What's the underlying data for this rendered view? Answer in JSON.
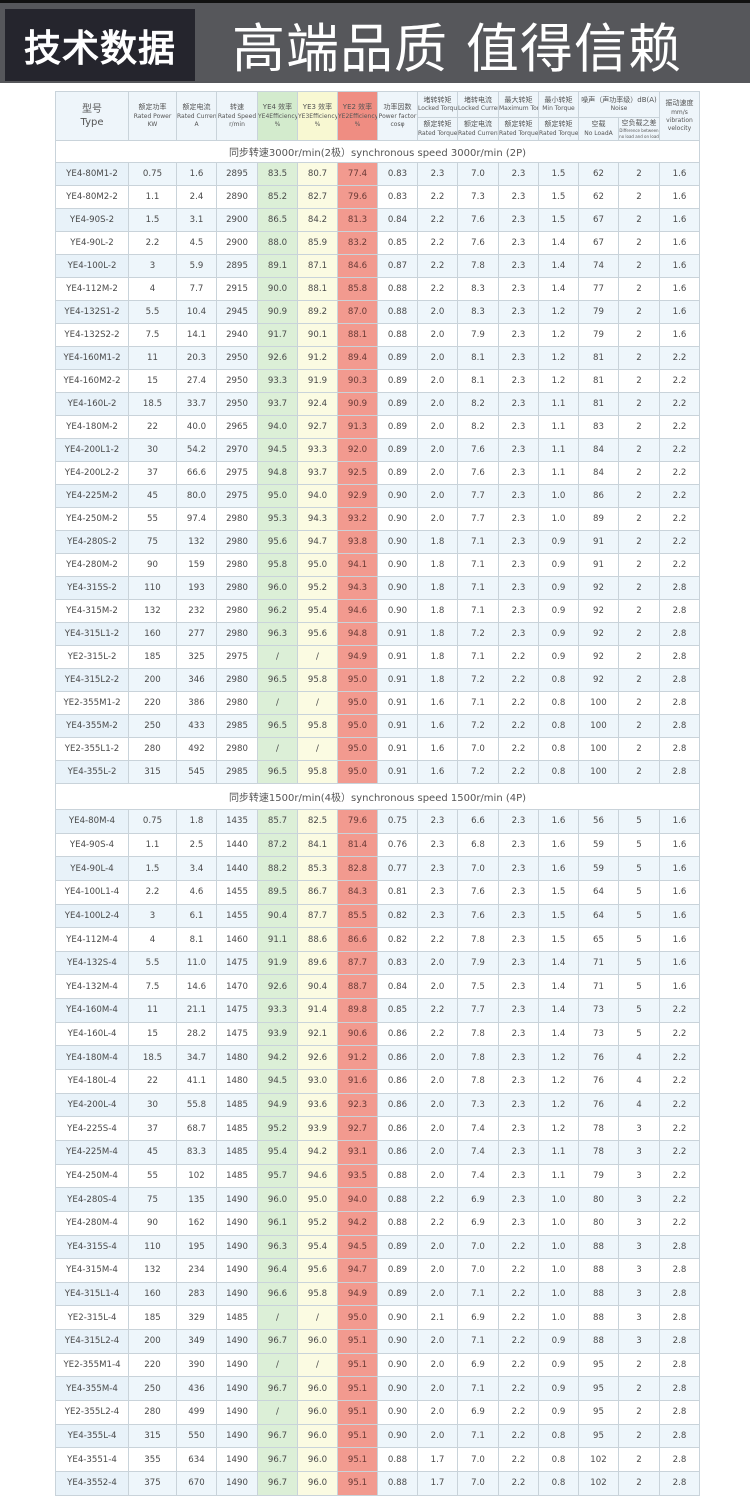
{
  "banner": {
    "badge": "技术数据",
    "slogan": "高端品质 值得信赖"
  },
  "colors": {
    "ye4": "#dcefd7",
    "ye3": "#fbfbe2",
    "ye2": "#f29a8f",
    "stripe": "#eef6fb",
    "banner": "#56575b"
  },
  "header": {
    "type_zh": "型号",
    "type_en": "Type",
    "power_zh": "额定功率",
    "power_en": "Rated Power",
    "power_unit": "KW",
    "current_zh": "额定电流",
    "current_en": "Rated Current",
    "current_unit": "A",
    "speed_zh": "转速",
    "speed_en": "Rated Speed",
    "speed_unit": "r/min",
    "ye4_zh": "YE4 效率",
    "ye4_en": "YE4Efficiency",
    "ye4_unit": "%",
    "ye3_zh": "YE3 效率",
    "ye3_en": "YE3Efficiency",
    "ye3_unit": "%",
    "ye2_zh": "YE2 效率",
    "ye2_en": "YE2Efficiency",
    "ye2_unit": "%",
    "pf_zh": "功率因数",
    "pf_en": "Power factor",
    "pf_unit": "cosφ",
    "lt_zh": "堵转转矩",
    "lt_en": "Locked Torque",
    "lt_den_zh": "额定转矩",
    "lt_den_en": "Rated Torque",
    "lc_zh": "堵转电流",
    "lc_en": "Locked Current",
    "lc_den_zh": "额定电流",
    "lc_den_en": "Rated Current",
    "mt_zh": "最大转矩",
    "mt_en": "Maximum Torque",
    "mt_den_zh": "额定转矩",
    "mt_den_en": "Rated Torque",
    "nt_zh": "最小转矩",
    "nt_en": "Min Torque",
    "nt_den_zh": "额定转矩",
    "nt_den_en": "Rated Torque",
    "noise_zh": "噪声（声功率级）dB(A)",
    "noise_en": "Noise",
    "noload_zh": "空载",
    "noload_en": "No LoadA",
    "diff_zh": "空负载之差",
    "diff_en": "Difference between no load and on load",
    "vib_zh": "振动速度",
    "vib_unit": "mm/s",
    "vib_en1": "vibration",
    "vib_en2": "velocity"
  },
  "sections": [
    {
      "title": "同步转速3000r/min(2极）synchronous speed 3000r/min (2P)",
      "rows": [
        [
          "YE4-80M1-2",
          "0.75",
          "1.6",
          "2895",
          "83.5",
          "80.7",
          "77.4",
          "0.83",
          "2.3",
          "7.0",
          "2.3",
          "1.5",
          "62",
          "2",
          "1.6"
        ],
        [
          "YE4-80M2-2",
          "1.1",
          "2.4",
          "2890",
          "85.2",
          "82.7",
          "79.6",
          "0.83",
          "2.2",
          "7.3",
          "2.3",
          "1.5",
          "62",
          "2",
          "1.6"
        ],
        [
          "YE4-90S-2",
          "1.5",
          "3.1",
          "2900",
          "86.5",
          "84.2",
          "81.3",
          "0.84",
          "2.2",
          "7.6",
          "2.3",
          "1.5",
          "67",
          "2",
          "1.6"
        ],
        [
          "YE4-90L-2",
          "2.2",
          "4.5",
          "2900",
          "88.0",
          "85.9",
          "83.2",
          "0.85",
          "2.2",
          "7.6",
          "2.3",
          "1.4",
          "67",
          "2",
          "1.6"
        ],
        [
          "YE4-100L-2",
          "3",
          "5.9",
          "2895",
          "89.1",
          "87.1",
          "84.6",
          "0.87",
          "2.2",
          "7.8",
          "2.3",
          "1.4",
          "74",
          "2",
          "1.6"
        ],
        [
          "YE4-112M-2",
          "4",
          "7.7",
          "2915",
          "90.0",
          "88.1",
          "85.8",
          "0.88",
          "2.2",
          "8.3",
          "2.3",
          "1.4",
          "77",
          "2",
          "1.6"
        ],
        [
          "YE4-132S1-2",
          "5.5",
          "10.4",
          "2945",
          "90.9",
          "89.2",
          "87.0",
          "0.88",
          "2.0",
          "8.3",
          "2.3",
          "1.2",
          "79",
          "2",
          "1.6"
        ],
        [
          "YE4-132S2-2",
          "7.5",
          "14.1",
          "2940",
          "91.7",
          "90.1",
          "88.1",
          "0.88",
          "2.0",
          "7.9",
          "2.3",
          "1.2",
          "79",
          "2",
          "1.6"
        ],
        [
          "YE4-160M1-2",
          "11",
          "20.3",
          "2950",
          "92.6",
          "91.2",
          "89.4",
          "0.89",
          "2.0",
          "8.1",
          "2.3",
          "1.2",
          "81",
          "2",
          "2.2"
        ],
        [
          "YE4-160M2-2",
          "15",
          "27.4",
          "2950",
          "93.3",
          "91.9",
          "90.3",
          "0.89",
          "2.0",
          "8.1",
          "2.3",
          "1.2",
          "81",
          "2",
          "2.2"
        ],
        [
          "YE4-160L-2",
          "18.5",
          "33.7",
          "2950",
          "93.7",
          "92.4",
          "90.9",
          "0.89",
          "2.0",
          "8.2",
          "2.3",
          "1.1",
          "81",
          "2",
          "2.2"
        ],
        [
          "YE4-180M-2",
          "22",
          "40.0",
          "2965",
          "94.0",
          "92.7",
          "91.3",
          "0.89",
          "2.0",
          "8.2",
          "2.3",
          "1.1",
          "83",
          "2",
          "2.2"
        ],
        [
          "YE4-200L1-2",
          "30",
          "54.2",
          "2970",
          "94.5",
          "93.3",
          "92.0",
          "0.89",
          "2.0",
          "7.6",
          "2.3",
          "1.1",
          "84",
          "2",
          "2.2"
        ],
        [
          "YE4-200L2-2",
          "37",
          "66.6",
          "2975",
          "94.8",
          "93.7",
          "92.5",
          "0.89",
          "2.0",
          "7.6",
          "2.3",
          "1.1",
          "84",
          "2",
          "2.2"
        ],
        [
          "YE4-225M-2",
          "45",
          "80.0",
          "2975",
          "95.0",
          "94.0",
          "92.9",
          "0.90",
          "2.0",
          "7.7",
          "2.3",
          "1.0",
          "86",
          "2",
          "2.2"
        ],
        [
          "YE4-250M-2",
          "55",
          "97.4",
          "2980",
          "95.3",
          "94.3",
          "93.2",
          "0.90",
          "2.0",
          "7.7",
          "2.3",
          "1.0",
          "89",
          "2",
          "2.2"
        ],
        [
          "YE4-280S-2",
          "75",
          "132",
          "2980",
          "95.6",
          "94.7",
          "93.8",
          "0.90",
          "1.8",
          "7.1",
          "2.3",
          "0.9",
          "91",
          "2",
          "2.2"
        ],
        [
          "YE4-280M-2",
          "90",
          "159",
          "2980",
          "95.8",
          "95.0",
          "94.1",
          "0.90",
          "1.8",
          "7.1",
          "2.3",
          "0.9",
          "91",
          "2",
          "2.2"
        ],
        [
          "YE4-315S-2",
          "110",
          "193",
          "2980",
          "96.0",
          "95.2",
          "94.3",
          "0.90",
          "1.8",
          "7.1",
          "2.3",
          "0.9",
          "92",
          "2",
          "2.8"
        ],
        [
          "YE4-315M-2",
          "132",
          "232",
          "2980",
          "96.2",
          "95.4",
          "94.6",
          "0.90",
          "1.8",
          "7.1",
          "2.3",
          "0.9",
          "92",
          "2",
          "2.8"
        ],
        [
          "YE4-315L1-2",
          "160",
          "277",
          "2980",
          "96.3",
          "95.6",
          "94.8",
          "0.91",
          "1.8",
          "7.2",
          "2.3",
          "0.9",
          "92",
          "2",
          "2.8"
        ],
        [
          "YE2-315L-2",
          "185",
          "325",
          "2975",
          "/",
          "/",
          "94.9",
          "0.91",
          "1.8",
          "7.1",
          "2.2",
          "0.9",
          "92",
          "2",
          "2.8"
        ],
        [
          "YE4-315L2-2",
          "200",
          "346",
          "2980",
          "96.5",
          "95.8",
          "95.0",
          "0.91",
          "1.8",
          "7.2",
          "2.2",
          "0.8",
          "92",
          "2",
          "2.8"
        ],
        [
          "YE2-355M1-2",
          "220",
          "386",
          "2980",
          "/",
          "/",
          "95.0",
          "0.91",
          "1.6",
          "7.1",
          "2.2",
          "0.8",
          "100",
          "2",
          "2.8"
        ],
        [
          "YE4-355M-2",
          "250",
          "433",
          "2985",
          "96.5",
          "95.8",
          "95.0",
          "0.91",
          "1.6",
          "7.2",
          "2.2",
          "0.8",
          "100",
          "2",
          "2.8"
        ],
        [
          "YE2-355L1-2",
          "280",
          "492",
          "2980",
          "/",
          "/",
          "95.0",
          "0.91",
          "1.6",
          "7.0",
          "2.2",
          "0.8",
          "100",
          "2",
          "2.8"
        ],
        [
          "YE4-355L-2",
          "315",
          "545",
          "2985",
          "96.5",
          "95.8",
          "95.0",
          "0.91",
          "1.6",
          "7.2",
          "2.2",
          "0.8",
          "100",
          "2",
          "2.8"
        ]
      ]
    },
    {
      "title": "同步转速1500r/min(4极）synchronous speed 1500r/min (4P)",
      "rows": [
        [
          "YE4-80M-4",
          "0.75",
          "1.8",
          "1435",
          "85.7",
          "82.5",
          "79.6",
          "0.75",
          "2.3",
          "6.6",
          "2.3",
          "1.6",
          "56",
          "5",
          "1.6"
        ],
        [
          "YE4-90S-4",
          "1.1",
          "2.5",
          "1440",
          "87.2",
          "84.1",
          "81.4",
          "0.76",
          "2.3",
          "6.8",
          "2.3",
          "1.6",
          "59",
          "5",
          "1.6"
        ],
        [
          "YE4-90L-4",
          "1.5",
          "3.4",
          "1440",
          "88.2",
          "85.3",
          "82.8",
          "0.77",
          "2.3",
          "7.0",
          "2.3",
          "1.6",
          "59",
          "5",
          "1.6"
        ],
        [
          "YE4-100L1-4",
          "2.2",
          "4.6",
          "1455",
          "89.5",
          "86.7",
          "84.3",
          "0.81",
          "2.3",
          "7.6",
          "2.3",
          "1.5",
          "64",
          "5",
          "1.6"
        ],
        [
          "YE4-100L2-4",
          "3",
          "6.1",
          "1455",
          "90.4",
          "87.7",
          "85.5",
          "0.82",
          "2.3",
          "7.6",
          "2.3",
          "1.5",
          "64",
          "5",
          "1.6"
        ],
        [
          "YE4-112M-4",
          "4",
          "8.1",
          "1460",
          "91.1",
          "88.6",
          "86.6",
          "0.82",
          "2.2",
          "7.8",
          "2.3",
          "1.5",
          "65",
          "5",
          "1.6"
        ],
        [
          "YE4-132S-4",
          "5.5",
          "11.0",
          "1475",
          "91.9",
          "89.6",
          "87.7",
          "0.83",
          "2.0",
          "7.9",
          "2.3",
          "1.4",
          "71",
          "5",
          "1.6"
        ],
        [
          "YE4-132M-4",
          "7.5",
          "14.6",
          "1470",
          "92.6",
          "90.4",
          "88.7",
          "0.84",
          "2.0",
          "7.5",
          "2.3",
          "1.4",
          "71",
          "5",
          "1.6"
        ],
        [
          "YE4-160M-4",
          "11",
          "21.1",
          "1475",
          "93.3",
          "91.4",
          "89.8",
          "0.85",
          "2.2",
          "7.7",
          "2.3",
          "1.4",
          "73",
          "5",
          "2.2"
        ],
        [
          "YE4-160L-4",
          "15",
          "28.2",
          "1475",
          "93.9",
          "92.1",
          "90.6",
          "0.86",
          "2.2",
          "7.8",
          "2.3",
          "1.4",
          "73",
          "5",
          "2.2"
        ],
        [
          "YE4-180M-4",
          "18.5",
          "34.7",
          "1480",
          "94.2",
          "92.6",
          "91.2",
          "0.86",
          "2.0",
          "7.8",
          "2.3",
          "1.2",
          "76",
          "4",
          "2.2"
        ],
        [
          "YE4-180L-4",
          "22",
          "41.1",
          "1480",
          "94.5",
          "93.0",
          "91.6",
          "0.86",
          "2.0",
          "7.8",
          "2.3",
          "1.2",
          "76",
          "4",
          "2.2"
        ],
        [
          "YE4-200L-4",
          "30",
          "55.8",
          "1485",
          "94.9",
          "93.6",
          "92.3",
          "0.86",
          "2.0",
          "7.3",
          "2.3",
          "1.2",
          "76",
          "4",
          "2.2"
        ],
        [
          "YE4-225S-4",
          "37",
          "68.7",
          "1485",
          "95.2",
          "93.9",
          "92.7",
          "0.86",
          "2.0",
          "7.4",
          "2.3",
          "1.2",
          "78",
          "3",
          "2.2"
        ],
        [
          "YE4-225M-4",
          "45",
          "83.3",
          "1485",
          "95.4",
          "94.2",
          "93.1",
          "0.86",
          "2.0",
          "7.4",
          "2.3",
          "1.1",
          "78",
          "3",
          "2.2"
        ],
        [
          "YE4-250M-4",
          "55",
          "102",
          "1485",
          "95.7",
          "94.6",
          "93.5",
          "0.88",
          "2.0",
          "7.4",
          "2.3",
          "1.1",
          "79",
          "3",
          "2.2"
        ],
        [
          "YE4-280S-4",
          "75",
          "135",
          "1490",
          "96.0",
          "95.0",
          "94.0",
          "0.88",
          "2.2",
          "6.9",
          "2.3",
          "1.0",
          "80",
          "3",
          "2.2"
        ],
        [
          "YE4-280M-4",
          "90",
          "162",
          "1490",
          "96.1",
          "95.2",
          "94.2",
          "0.88",
          "2.2",
          "6.9",
          "2.3",
          "1.0",
          "80",
          "3",
          "2.2"
        ],
        [
          "YE4-315S-4",
          "110",
          "195",
          "1490",
          "96.3",
          "95.4",
          "94.5",
          "0.89",
          "2.0",
          "7.0",
          "2.2",
          "1.0",
          "88",
          "3",
          "2.8"
        ],
        [
          "YE4-315M-4",
          "132",
          "234",
          "1490",
          "96.4",
          "95.6",
          "94.7",
          "0.89",
          "2.0",
          "7.0",
          "2.2",
          "1.0",
          "88",
          "3",
          "2.8"
        ],
        [
          "YE4-315L1-4",
          "160",
          "283",
          "1490",
          "96.6",
          "95.8",
          "94.9",
          "0.89",
          "2.0",
          "7.1",
          "2.2",
          "1.0",
          "88",
          "3",
          "2.8"
        ],
        [
          "YE2-315L-4",
          "185",
          "329",
          "1485",
          "/",
          "/",
          "95.0",
          "0.90",
          "2.1",
          "6.9",
          "2.2",
          "1.0",
          "88",
          "3",
          "2.8"
        ],
        [
          "YE4-315L2-4",
          "200",
          "349",
          "1490",
          "96.7",
          "96.0",
          "95.1",
          "0.90",
          "2.0",
          "7.1",
          "2.2",
          "0.9",
          "88",
          "3",
          "2.8"
        ],
        [
          "YE2-355M1-4",
          "220",
          "390",
          "1490",
          "/",
          "/",
          "95.1",
          "0.90",
          "2.0",
          "6.9",
          "2.2",
          "0.9",
          "95",
          "2",
          "2.8"
        ],
        [
          "YE4-355M-4",
          "250",
          "436",
          "1490",
          "96.7",
          "96.0",
          "95.1",
          "0.90",
          "2.0",
          "7.1",
          "2.2",
          "0.9",
          "95",
          "2",
          "2.8"
        ],
        [
          "YE2-355L2-4",
          "280",
          "499",
          "1490",
          "/",
          "96.0",
          "95.1",
          "0.90",
          "2.0",
          "6.9",
          "2.2",
          "0.9",
          "95",
          "2",
          "2.8"
        ],
        [
          "YE4-355L-4",
          "315",
          "550",
          "1490",
          "96.7",
          "96.0",
          "95.1",
          "0.90",
          "2.0",
          "7.1",
          "2.2",
          "0.8",
          "95",
          "2",
          "2.8"
        ],
        [
          "YE4-3551-4",
          "355",
          "634",
          "1490",
          "96.7",
          "96.0",
          "95.1",
          "0.88",
          "1.7",
          "7.0",
          "2.2",
          "0.8",
          "102",
          "2",
          "2.8"
        ],
        [
          "YE4-3552-4",
          "375",
          "670",
          "1490",
          "96.7",
          "96.0",
          "95.1",
          "0.88",
          "1.7",
          "7.0",
          "2.2",
          "0.8",
          "102",
          "2",
          "2.8"
        ]
      ]
    }
  ]
}
